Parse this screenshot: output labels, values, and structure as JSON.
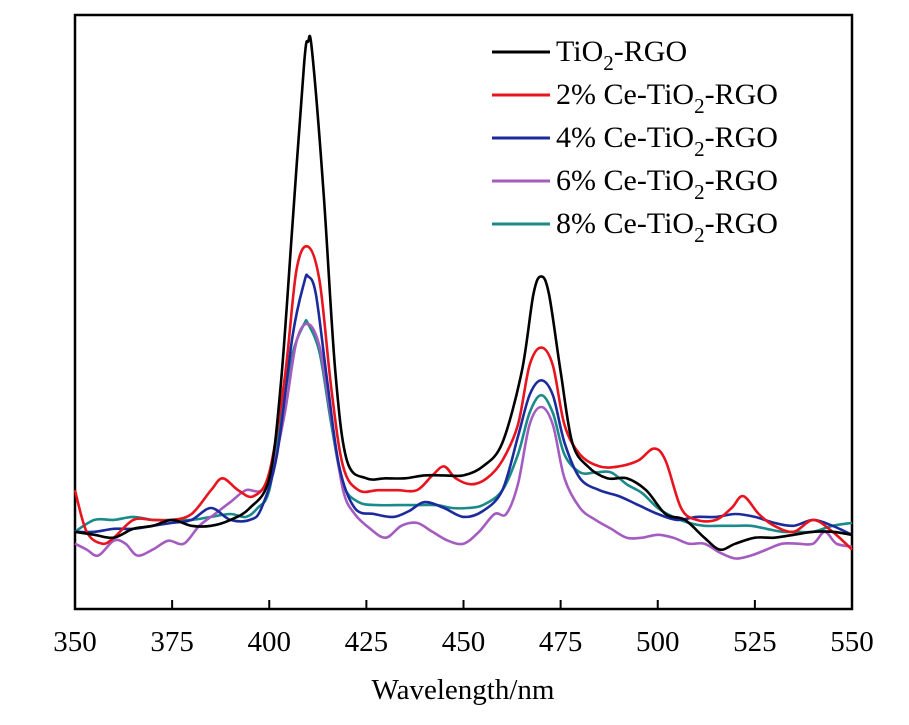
{
  "chart_data": {
    "type": "line",
    "title": "",
    "xlabel": "Wavelength/nm",
    "ylabel": "",
    "xlim": [
      350,
      550
    ],
    "ylim": [
      0,
      100
    ],
    "x_ticks": [
      350,
      375,
      400,
      425,
      450,
      475,
      500,
      525,
      550
    ],
    "legend": {
      "position": "top-right"
    },
    "grid": false,
    "series": [
      {
        "name": "TiO2-RGO",
        "label_main": "TiO",
        "label_sub": "2",
        "label_rest": "-RGO",
        "color": "#000000",
        "points": [
          [
            350,
            13
          ],
          [
            355,
            12.5
          ],
          [
            360,
            12
          ],
          [
            365,
            13.5
          ],
          [
            370,
            14
          ],
          [
            375,
            15
          ],
          [
            380,
            14
          ],
          [
            385,
            14
          ],
          [
            390,
            15
          ],
          [
            395,
            17
          ],
          [
            400,
            22
          ],
          [
            403,
            38
          ],
          [
            406,
            65
          ],
          [
            409,
            92
          ],
          [
            410,
            95.5
          ],
          [
            411,
            94
          ],
          [
            414,
            70
          ],
          [
            417,
            40
          ],
          [
            420,
            25
          ],
          [
            425,
            22
          ],
          [
            430,
            22
          ],
          [
            435,
            22
          ],
          [
            440,
            22.5
          ],
          [
            445,
            22.5
          ],
          [
            450,
            22.5
          ],
          [
            455,
            24
          ],
          [
            460,
            28
          ],
          [
            465,
            40
          ],
          [
            468,
            53
          ],
          [
            470,
            56
          ],
          [
            472,
            53
          ],
          [
            475,
            40
          ],
          [
            478,
            28
          ],
          [
            482,
            24
          ],
          [
            487,
            22
          ],
          [
            492,
            22
          ],
          [
            497,
            20
          ],
          [
            502,
            16
          ],
          [
            507,
            15
          ],
          [
            512,
            12
          ],
          [
            516,
            10
          ],
          [
            520,
            11
          ],
          [
            525,
            12
          ],
          [
            530,
            12
          ],
          [
            535,
            12.5
          ],
          [
            540,
            13
          ],
          [
            545,
            13
          ],
          [
            550,
            12.5
          ]
        ]
      },
      {
        "name": "2% Ce-TiO2-RGO",
        "label_main": "2% Ce-TiO",
        "label_sub": "2",
        "label_rest": "-RGO",
        "color": "#e8141e",
        "points": [
          [
            350,
            20
          ],
          [
            353,
            13
          ],
          [
            357,
            11
          ],
          [
            360,
            12
          ],
          [
            365,
            15
          ],
          [
            370,
            15
          ],
          [
            375,
            15
          ],
          [
            380,
            16
          ],
          [
            385,
            20
          ],
          [
            388,
            22
          ],
          [
            392,
            20
          ],
          [
            396,
            19
          ],
          [
            400,
            23
          ],
          [
            404,
            39
          ],
          [
            407,
            57
          ],
          [
            410,
            61
          ],
          [
            413,
            55
          ],
          [
            416,
            37
          ],
          [
            419,
            24
          ],
          [
            423,
            20
          ],
          [
            428,
            20
          ],
          [
            433,
            20
          ],
          [
            438,
            20
          ],
          [
            442,
            22.5
          ],
          [
            445,
            24
          ],
          [
            448,
            22
          ],
          [
            452,
            21
          ],
          [
            456,
            22
          ],
          [
            460,
            25
          ],
          [
            464,
            31
          ],
          [
            467,
            41
          ],
          [
            470,
            44
          ],
          [
            473,
            41
          ],
          [
            476,
            31
          ],
          [
            480,
            26
          ],
          [
            485,
            24
          ],
          [
            490,
            24
          ],
          [
            495,
            25
          ],
          [
            499,
            27
          ],
          [
            502,
            25
          ],
          [
            506,
            17
          ],
          [
            510,
            15
          ],
          [
            515,
            15
          ],
          [
            519,
            17
          ],
          [
            522,
            19
          ],
          [
            526,
            16
          ],
          [
            530,
            14
          ],
          [
            535,
            13
          ],
          [
            540,
            15
          ],
          [
            545,
            13
          ],
          [
            550,
            10
          ]
        ]
      },
      {
        "name": "4% Ce-TiO2-RGO",
        "label_main": "4% Ce-TiO",
        "label_sub": "2",
        "label_rest": "-RGO",
        "color": "#1c2b9c",
        "points": [
          [
            350,
            13
          ],
          [
            355,
            13
          ],
          [
            360,
            13.5
          ],
          [
            365,
            13.5
          ],
          [
            370,
            14
          ],
          [
            375,
            14.5
          ],
          [
            380,
            15
          ],
          [
            385,
            17
          ],
          [
            390,
            15
          ],
          [
            395,
            15
          ],
          [
            398,
            17
          ],
          [
            402,
            26
          ],
          [
            406,
            46
          ],
          [
            409,
            55
          ],
          [
            410,
            56
          ],
          [
            412,
            53
          ],
          [
            415,
            38
          ],
          [
            418,
            24
          ],
          [
            422,
            17
          ],
          [
            427,
            16
          ],
          [
            432,
            15.5
          ],
          [
            436,
            16.5
          ],
          [
            440,
            18
          ],
          [
            445,
            17
          ],
          [
            450,
            15.5
          ],
          [
            455,
            16.5
          ],
          [
            460,
            20
          ],
          [
            464,
            29
          ],
          [
            467,
            36
          ],
          [
            470,
            38.5
          ],
          [
            473,
            36
          ],
          [
            476,
            28
          ],
          [
            480,
            22
          ],
          [
            485,
            20
          ],
          [
            490,
            19
          ],
          [
            495,
            17.5
          ],
          [
            500,
            16
          ],
          [
            505,
            15
          ],
          [
            510,
            15.5
          ],
          [
            515,
            15.5
          ],
          [
            520,
            16
          ],
          [
            525,
            15.5
          ],
          [
            530,
            14.5
          ],
          [
            535,
            14
          ],
          [
            540,
            15
          ],
          [
            545,
            14
          ],
          [
            550,
            12.5
          ]
        ]
      },
      {
        "name": "6% Ce-TiO2-RGO",
        "label_main": "6% Ce-TiO",
        "label_sub": "2",
        "label_rest": "-RGO",
        "color": "#a55cc0",
        "points": [
          [
            350,
            11
          ],
          [
            353,
            10
          ],
          [
            356,
            9
          ],
          [
            360,
            11.5
          ],
          [
            363,
            11
          ],
          [
            366,
            9
          ],
          [
            370,
            10
          ],
          [
            374,
            11.5
          ],
          [
            378,
            11
          ],
          [
            382,
            14
          ],
          [
            386,
            16
          ],
          [
            390,
            18
          ],
          [
            394,
            20
          ],
          [
            398,
            20
          ],
          [
            401,
            24
          ],
          [
            404,
            33
          ],
          [
            407,
            45
          ],
          [
            410,
            48
          ],
          [
            413,
            44
          ],
          [
            416,
            32
          ],
          [
            419,
            20
          ],
          [
            422,
            16
          ],
          [
            426,
            13.5
          ],
          [
            430,
            12
          ],
          [
            434,
            14
          ],
          [
            438,
            14.5
          ],
          [
            442,
            13
          ],
          [
            446,
            11.5
          ],
          [
            450,
            11
          ],
          [
            454,
            13
          ],
          [
            458,
            16
          ],
          [
            461,
            16
          ],
          [
            464,
            21
          ],
          [
            467,
            31
          ],
          [
            470,
            34
          ],
          [
            473,
            31
          ],
          [
            476,
            22
          ],
          [
            480,
            17
          ],
          [
            484,
            15
          ],
          [
            488,
            13.5
          ],
          [
            492,
            12
          ],
          [
            496,
            12
          ],
          [
            500,
            12.5
          ],
          [
            504,
            12
          ],
          [
            508,
            11
          ],
          [
            512,
            11
          ],
          [
            516,
            9.5
          ],
          [
            520,
            8.5
          ],
          [
            524,
            9
          ],
          [
            528,
            10
          ],
          [
            532,
            11
          ],
          [
            536,
            11
          ],
          [
            540,
            11
          ],
          [
            543,
            13
          ],
          [
            546,
            11
          ],
          [
            550,
            10.5
          ]
        ]
      },
      {
        "name": "8% Ce-TiO2-RGO",
        "label_main": "8% Ce-TiO",
        "label_sub": "2",
        "label_rest": "-RGO",
        "color": "#1a8a8a",
        "points": [
          [
            350,
            13
          ],
          [
            355,
            15
          ],
          [
            360,
            15
          ],
          [
            365,
            15.5
          ],
          [
            370,
            15
          ],
          [
            375,
            15
          ],
          [
            380,
            15
          ],
          [
            385,
            15.5
          ],
          [
            390,
            16
          ],
          [
            394,
            15.5
          ],
          [
            397,
            17
          ],
          [
            400,
            20
          ],
          [
            403,
            32
          ],
          [
            406,
            43
          ],
          [
            409,
            48
          ],
          [
            410,
            48
          ],
          [
            413,
            43
          ],
          [
            416,
            31
          ],
          [
            419,
            21
          ],
          [
            423,
            18
          ],
          [
            428,
            17.5
          ],
          [
            433,
            17.5
          ],
          [
            438,
            17.5
          ],
          [
            443,
            17.5
          ],
          [
            447,
            17
          ],
          [
            451,
            17
          ],
          [
            455,
            17.5
          ],
          [
            460,
            20
          ],
          [
            464,
            26
          ],
          [
            467,
            33
          ],
          [
            470,
            36
          ],
          [
            473,
            33
          ],
          [
            476,
            26
          ],
          [
            480,
            23
          ],
          [
            484,
            23
          ],
          [
            488,
            23
          ],
          [
            492,
            21
          ],
          [
            496,
            19.5
          ],
          [
            500,
            17
          ],
          [
            504,
            15.5
          ],
          [
            508,
            14.5
          ],
          [
            512,
            14
          ],
          [
            516,
            14
          ],
          [
            520,
            14
          ],
          [
            524,
            14
          ],
          [
            528,
            13.5
          ],
          [
            532,
            13
          ],
          [
            536,
            13
          ],
          [
            540,
            13
          ],
          [
            545,
            14
          ],
          [
            550,
            14.5
          ]
        ]
      }
    ]
  }
}
